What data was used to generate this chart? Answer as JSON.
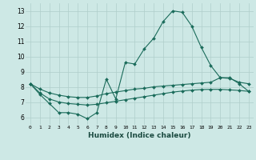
{
  "xlabel": "Humidex (Indice chaleur)",
  "bg_color": "#cde8e5",
  "grid_color": "#b0ceca",
  "line_color": "#1a6b5a",
  "xlim": [
    -0.5,
    23.5
  ],
  "ylim": [
    5.5,
    13.5
  ],
  "xticks": [
    0,
    1,
    2,
    3,
    4,
    5,
    6,
    7,
    8,
    9,
    10,
    11,
    12,
    13,
    14,
    15,
    16,
    17,
    18,
    19,
    20,
    21,
    22,
    23
  ],
  "yticks": [
    6,
    7,
    8,
    9,
    10,
    11,
    12,
    13
  ],
  "series1_y": [
    8.2,
    7.5,
    6.9,
    6.3,
    6.3,
    6.2,
    5.9,
    6.3,
    8.5,
    7.2,
    9.6,
    9.5,
    10.5,
    11.2,
    12.3,
    13.0,
    12.9,
    12.0,
    10.6,
    9.4,
    8.6,
    8.6,
    8.2,
    7.7
  ],
  "series2_y": [
    8.2,
    7.85,
    7.6,
    7.45,
    7.35,
    7.3,
    7.3,
    7.4,
    7.55,
    7.65,
    7.75,
    7.85,
    7.9,
    8.0,
    8.05,
    8.1,
    8.15,
    8.2,
    8.25,
    8.3,
    8.6,
    8.55,
    8.3,
    8.2
  ],
  "series3_y": [
    8.2,
    7.6,
    7.2,
    7.0,
    6.9,
    6.85,
    6.8,
    6.85,
    6.95,
    7.05,
    7.15,
    7.25,
    7.35,
    7.45,
    7.55,
    7.65,
    7.72,
    7.78,
    7.82,
    7.83,
    7.83,
    7.8,
    7.76,
    7.7
  ]
}
